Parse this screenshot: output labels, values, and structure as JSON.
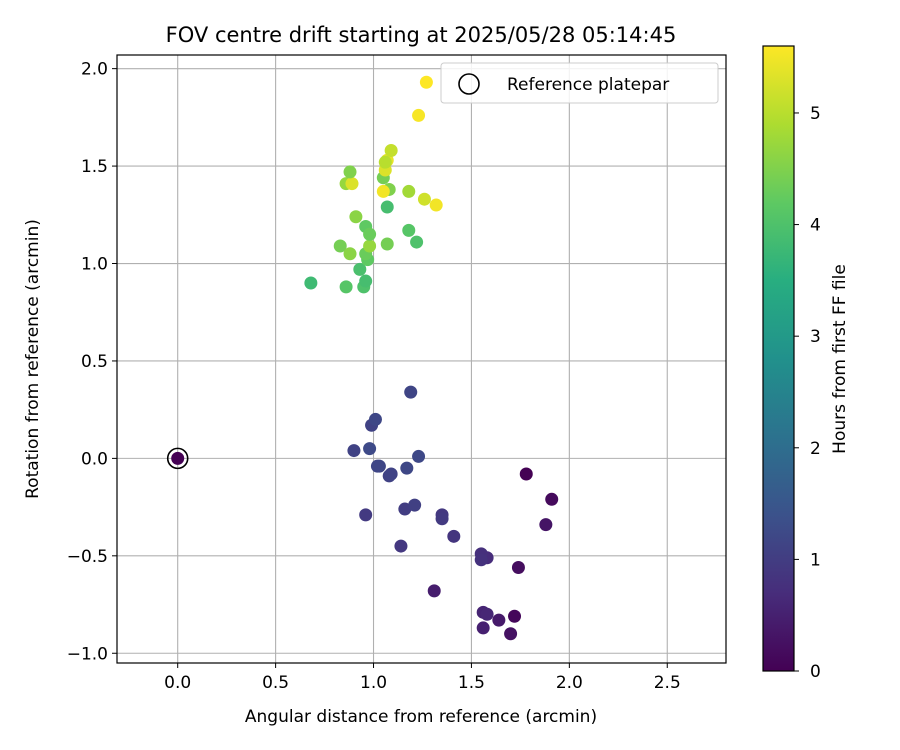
{
  "chart_data": {
    "type": "scatter",
    "title": "FOV centre drift starting at 2025/05/28 05:14:45",
    "xlabel": "Angular distance from reference (arcmin)",
    "ylabel": "Rotation from reference (arcmin)",
    "xlim": [
      -0.31,
      2.8
    ],
    "ylim": [
      -1.05,
      2.07
    ],
    "x_ticks": [
      0.0,
      0.5,
      1.0,
      1.5,
      2.0,
      2.5
    ],
    "y_ticks": [
      -1.0,
      -0.5,
      0.0,
      0.5,
      1.0,
      1.5,
      2.0
    ],
    "x_tick_labels": [
      "0.0",
      "0.5",
      "1.0",
      "1.5",
      "2.0",
      "2.5"
    ],
    "y_tick_labels": [
      "−1.0",
      "−0.5",
      "0.0",
      "0.5",
      "1.0",
      "1.5",
      "2.0"
    ],
    "grid": true,
    "legend": {
      "position": "upper-right",
      "label": "Reference platepar"
    },
    "colorbar": {
      "label": "Hours from first FF file",
      "range": [
        0,
        5.6
      ],
      "ticks": [
        0,
        1,
        2,
        3,
        4,
        5
      ],
      "tick_labels": [
        "0",
        "1",
        "2",
        "3",
        "4",
        "5"
      ],
      "colormap": "viridis"
    },
    "reference_point": {
      "x": 0.0,
      "y": 0.0,
      "hours": 0.0
    },
    "points": [
      {
        "x": 0.0,
        "y": 0.0,
        "h": 0.0
      },
      {
        "x": 1.78,
        "y": -0.08,
        "h": 0.0
      },
      {
        "x": 1.91,
        "y": -0.21,
        "h": 0.15
      },
      {
        "x": 1.88,
        "y": -0.34,
        "h": 0.3
      },
      {
        "x": 1.74,
        "y": -0.56,
        "h": 0.2
      },
      {
        "x": 1.72,
        "y": -0.81,
        "h": 0.1
      },
      {
        "x": 1.7,
        "y": -0.9,
        "h": 0.25
      },
      {
        "x": 1.64,
        "y": -0.83,
        "h": 0.4
      },
      {
        "x": 1.56,
        "y": -0.87,
        "h": 0.5
      },
      {
        "x": 1.56,
        "y": -0.79,
        "h": 0.55
      },
      {
        "x": 1.58,
        "y": -0.8,
        "h": 0.6
      },
      {
        "x": 1.31,
        "y": -0.68,
        "h": 0.45
      },
      {
        "x": 1.58,
        "y": -0.51,
        "h": 0.7
      },
      {
        "x": 1.55,
        "y": -0.49,
        "h": 0.75
      },
      {
        "x": 1.55,
        "y": -0.52,
        "h": 0.8
      },
      {
        "x": 1.41,
        "y": -0.4,
        "h": 0.85
      },
      {
        "x": 1.35,
        "y": -0.29,
        "h": 0.9
      },
      {
        "x": 1.35,
        "y": -0.31,
        "h": 0.95
      },
      {
        "x": 1.14,
        "y": -0.45,
        "h": 0.9
      },
      {
        "x": 0.96,
        "y": -0.29,
        "h": 0.95
      },
      {
        "x": 1.16,
        "y": -0.26,
        "h": 1.0
      },
      {
        "x": 1.21,
        "y": -0.24,
        "h": 1.05
      },
      {
        "x": 1.08,
        "y": -0.09,
        "h": 1.1
      },
      {
        "x": 1.09,
        "y": -0.08,
        "h": 1.12
      },
      {
        "x": 1.03,
        "y": -0.04,
        "h": 1.15
      },
      {
        "x": 1.02,
        "y": -0.04,
        "h": 1.18
      },
      {
        "x": 1.17,
        "y": -0.05,
        "h": 1.2
      },
      {
        "x": 1.23,
        "y": 0.01,
        "h": 1.22
      },
      {
        "x": 0.9,
        "y": 0.04,
        "h": 1.1
      },
      {
        "x": 0.98,
        "y": 0.05,
        "h": 1.25
      },
      {
        "x": 0.99,
        "y": 0.17,
        "h": 1.1
      },
      {
        "x": 1.01,
        "y": 0.2,
        "h": 1.2
      },
      {
        "x": 1.19,
        "y": 0.34,
        "h": 1.15
      },
      {
        "x": 0.68,
        "y": 0.9,
        "h": 3.8
      },
      {
        "x": 0.86,
        "y": 0.88,
        "h": 4.1
      },
      {
        "x": 0.95,
        "y": 0.88,
        "h": 4.0
      },
      {
        "x": 0.96,
        "y": 0.91,
        "h": 3.9
      },
      {
        "x": 0.93,
        "y": 0.97,
        "h": 3.95
      },
      {
        "x": 0.97,
        "y": 1.02,
        "h": 4.2
      },
      {
        "x": 0.96,
        "y": 1.05,
        "h": 4.3
      },
      {
        "x": 0.83,
        "y": 1.09,
        "h": 4.4
      },
      {
        "x": 0.88,
        "y": 1.05,
        "h": 4.6
      },
      {
        "x": 0.98,
        "y": 1.09,
        "h": 4.7
      },
      {
        "x": 1.07,
        "y": 1.1,
        "h": 4.4
      },
      {
        "x": 1.22,
        "y": 1.11,
        "h": 4.0
      },
      {
        "x": 1.18,
        "y": 1.17,
        "h": 4.1
      },
      {
        "x": 0.96,
        "y": 1.19,
        "h": 4.2
      },
      {
        "x": 0.98,
        "y": 1.15,
        "h": 4.3
      },
      {
        "x": 0.91,
        "y": 1.24,
        "h": 4.6
      },
      {
        "x": 1.07,
        "y": 1.29,
        "h": 3.9
      },
      {
        "x": 0.86,
        "y": 1.41,
        "h": 4.7
      },
      {
        "x": 0.89,
        "y": 1.41,
        "h": 5.3
      },
      {
        "x": 0.88,
        "y": 1.47,
        "h": 4.5
      },
      {
        "x": 1.05,
        "y": 1.44,
        "h": 4.4
      },
      {
        "x": 1.08,
        "y": 1.38,
        "h": 4.5
      },
      {
        "x": 1.05,
        "y": 1.37,
        "h": 5.5
      },
      {
        "x": 1.18,
        "y": 1.37,
        "h": 4.8
      },
      {
        "x": 1.26,
        "y": 1.33,
        "h": 5.2
      },
      {
        "x": 1.32,
        "y": 1.3,
        "h": 5.5
      },
      {
        "x": 1.06,
        "y": 1.48,
        "h": 5.3
      },
      {
        "x": 1.07,
        "y": 1.53,
        "h": 5.4
      },
      {
        "x": 1.06,
        "y": 1.52,
        "h": 5.0
      },
      {
        "x": 1.09,
        "y": 1.58,
        "h": 5.1
      },
      {
        "x": 1.23,
        "y": 1.76,
        "h": 5.55
      },
      {
        "x": 1.27,
        "y": 1.93,
        "h": 5.6
      }
    ]
  }
}
